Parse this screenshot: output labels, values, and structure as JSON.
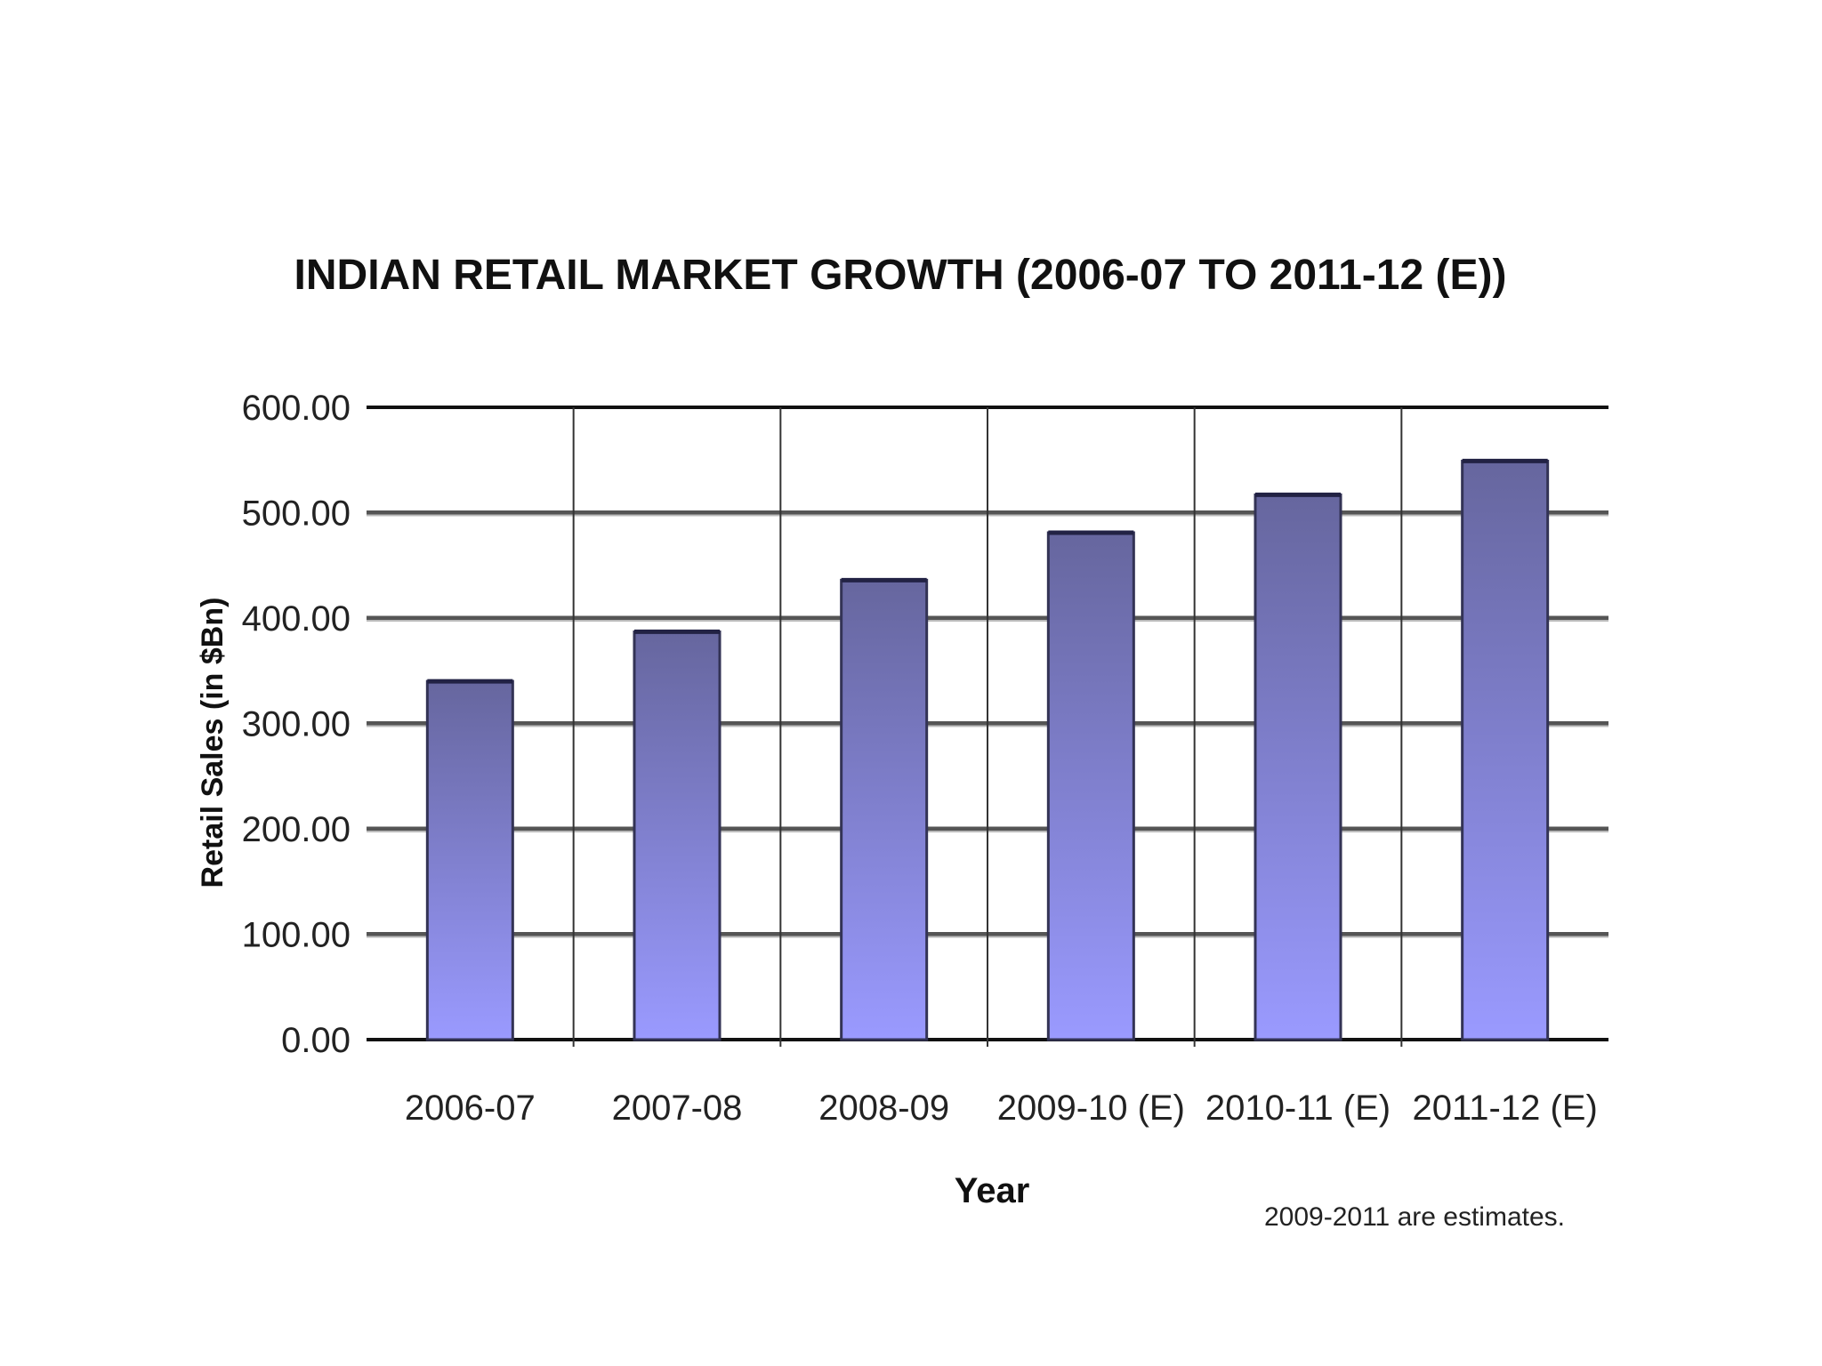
{
  "chart_data": {
    "type": "bar",
    "title": "INDIAN RETAIL MARKET GROWTH (2006-07 TO 2011-12 (E))",
    "xlabel": "Year",
    "ylabel": "Retail Sales (in $Bn)",
    "categories": [
      "2006-07",
      "2007-08",
      "2008-09",
      "2009-10 (E)",
      "2010-11 (E)",
      "2011-12 (E)"
    ],
    "values": [
      340,
      387,
      436,
      481,
      517,
      549
    ],
    "ylim": [
      0,
      600
    ],
    "y_ticks": [
      "0.00",
      "100.00",
      "200.00",
      "300.00",
      "400.00",
      "500.00",
      "600.00"
    ],
    "grid": true,
    "legend": "none",
    "bar_color_top": "#66669e",
    "bar_color_bottom": "#9a9aff",
    "footnote": "2009-2011 are estimates."
  }
}
